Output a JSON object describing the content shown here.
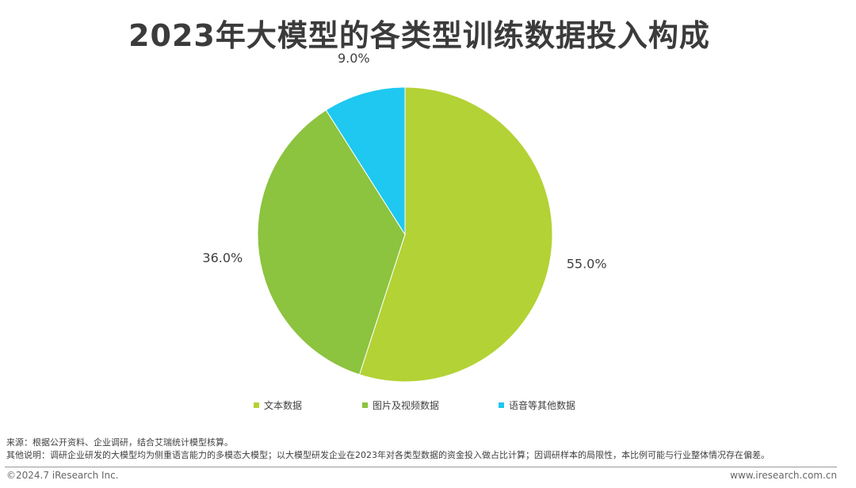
{
  "header": {
    "title": "2023年大模型的各类型训练数据投入构成"
  },
  "chart_data": {
    "type": "pie",
    "title": "2023年大模型的各类型训练数据投入构成",
    "slices": [
      {
        "name": "文本数据",
        "value": 55.0,
        "label": "55.0%",
        "color": "#B3D235"
      },
      {
        "name": "图片及视频数据",
        "value": 36.0,
        "label": "36.0%",
        "color": "#8CC33F"
      },
      {
        "name": "语音等其他数据",
        "value": 9.0,
        "label": "9.0%",
        "color": "#1EC8F0"
      }
    ],
    "legend_position": "bottom",
    "start_angle_deg": 0,
    "direction": "clockwise"
  },
  "notes": {
    "source": "来源：根据公开资料、企业调研，结合艾瑞统计模型核算。",
    "other": "其他说明：调研企业研发的大模型均为侧重语言能力的多模态大模型；以大模型研发企业在2023年对各类型数据的资金投入做占比计算；因调研样本的局限性，本比例可能与行业整体情况存在偏差。"
  },
  "footer": {
    "copyright": "©2024.7 iResearch Inc.",
    "website": "www.iresearch.com.cn"
  }
}
